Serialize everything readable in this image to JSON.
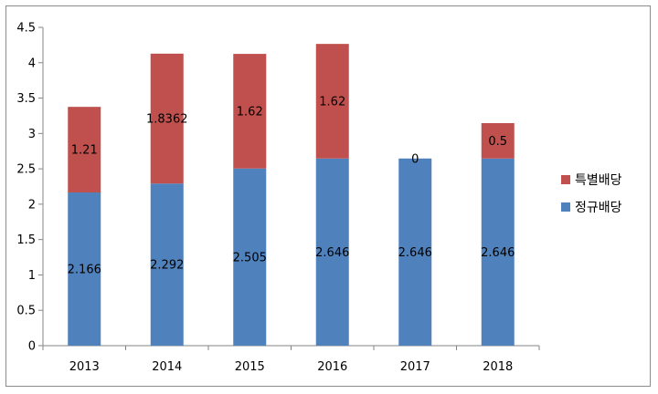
{
  "chart_data": {
    "type": "bar",
    "stacked": true,
    "categories": [
      "2013",
      "2014",
      "2015",
      "2016",
      "2017",
      "2018"
    ],
    "series": [
      {
        "name": "정규배당",
        "color": "#4f81bd",
        "values": [
          2.166,
          2.292,
          2.505,
          2.646,
          2.646,
          2.646
        ],
        "labels": [
          "2.166",
          "2.292",
          "2.505",
          "2.646",
          "2.646",
          "2.646"
        ]
      },
      {
        "name": "특별배당",
        "color": "#c0504d",
        "values": [
          1.21,
          1.8362,
          1.62,
          1.62,
          0,
          0.5
        ],
        "labels": [
          "1.21",
          "1.8362",
          "1.62",
          "1.62",
          "0",
          "0.5"
        ]
      }
    ],
    "ylim": [
      0,
      4.5
    ],
    "yticks": [
      "0",
      "0.5",
      "1",
      "1.5",
      "2",
      "2.5",
      "3",
      "3.5",
      "4",
      "4.5"
    ],
    "grid": false,
    "legend_position": "right",
    "title": "",
    "xlabel": "",
    "ylabel": ""
  }
}
